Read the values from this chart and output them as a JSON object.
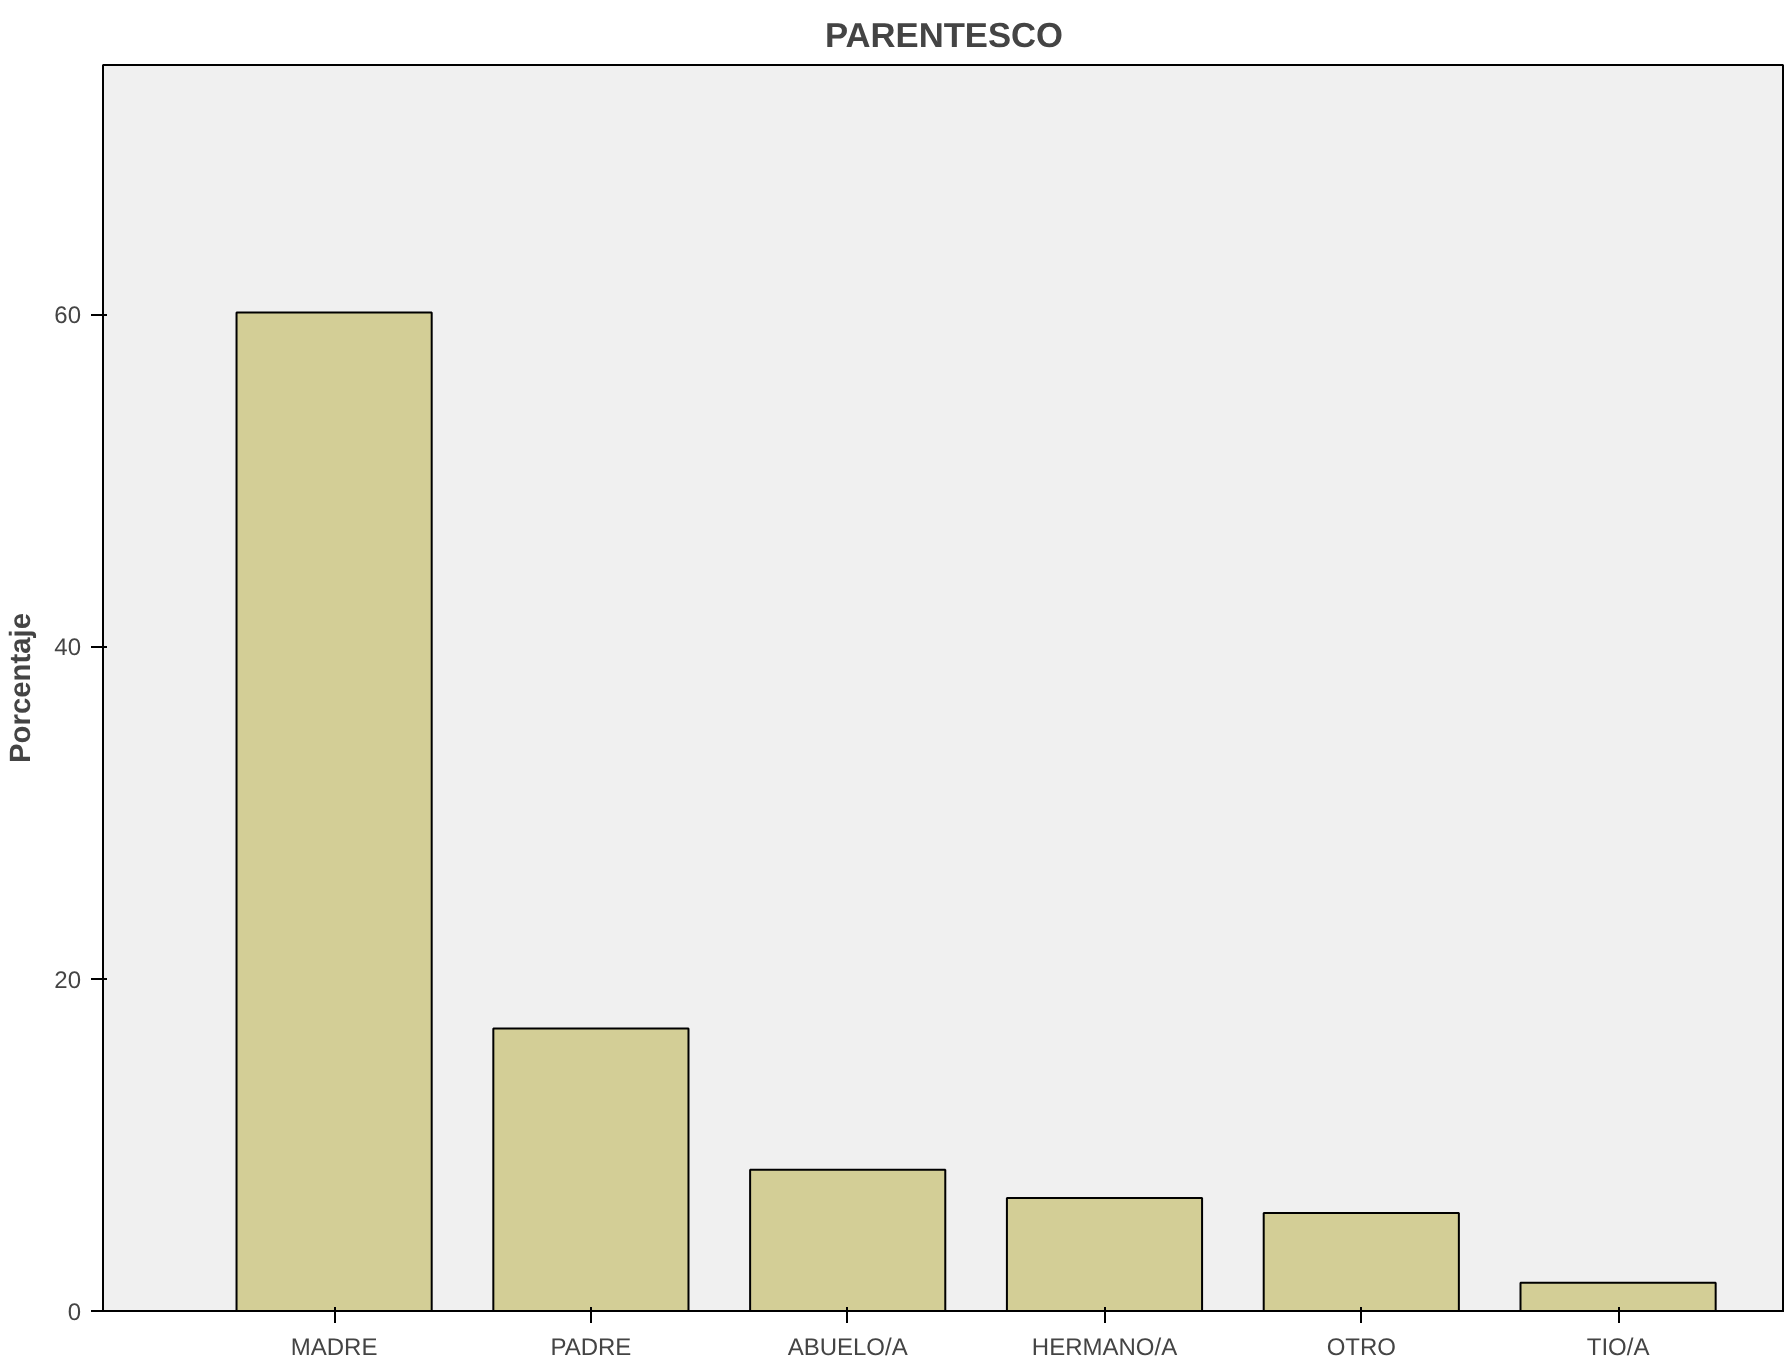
{
  "chart_data": {
    "type": "bar",
    "title": "PARENTESCO",
    "ylabel": "Porcentaje",
    "categories": [
      "MADRE",
      "PADRE",
      "ABUELO/A",
      "HERMANO/A",
      "OTRO",
      "TIO/A"
    ],
    "values": [
      60.1,
      17.0,
      8.5,
      6.8,
      5.9,
      1.7
    ],
    "color": "#d3ce96",
    "ylim": [
      0,
      75
    ],
    "yticks": [
      0,
      20,
      40,
      60
    ],
    "grid": false
  }
}
